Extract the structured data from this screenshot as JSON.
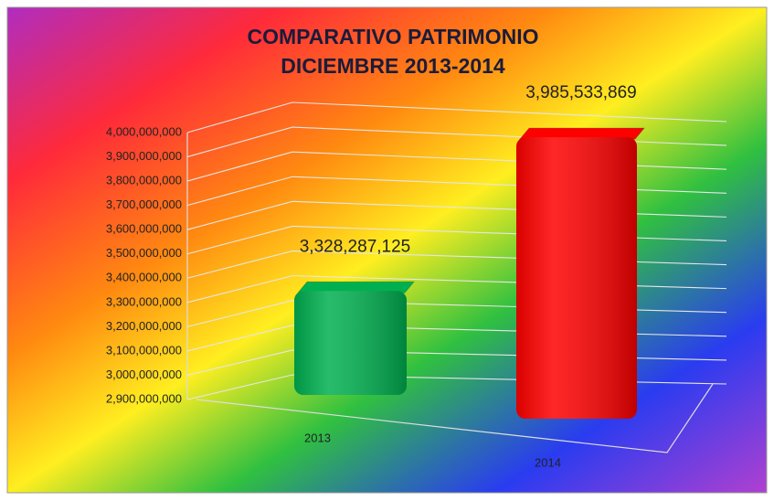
{
  "chart_data": {
    "type": "bar3d",
    "title": [
      "COMPARATIVO PATRIMONIO",
      "DICIEMBRE 2013-2014"
    ],
    "categories": [
      "2013",
      "2014"
    ],
    "values": [
      3328287125,
      3985533869
    ],
    "value_labels": [
      "3,328,287,125",
      "3,985,533,869"
    ],
    "colors": [
      "#00b050",
      "#ff0000"
    ],
    "ylim": [
      2900000000,
      4000000000
    ],
    "yticks": [
      {
        "value": 2900000000,
        "label": "2,900,000,000"
      },
      {
        "value": 3000000000,
        "label": "3,000,000,000"
      },
      {
        "value": 3100000000,
        "label": "3,100,000,000"
      },
      {
        "value": 3200000000,
        "label": "3,200,000,000"
      },
      {
        "value": 3300000000,
        "label": "3,300,000,000"
      },
      {
        "value": 3400000000,
        "label": "3,400,000,000"
      },
      {
        "value": 3500000000,
        "label": "3,500,000,000"
      },
      {
        "value": 3600000000,
        "label": "3,600,000,000"
      },
      {
        "value": 3700000000,
        "label": "3,700,000,000"
      },
      {
        "value": 3800000000,
        "label": "3,800,000,000"
      },
      {
        "value": 3900000000,
        "label": "3,900,000,000"
      },
      {
        "value": 4000000000,
        "label": "4,000,000,000"
      }
    ],
    "grid": true
  }
}
